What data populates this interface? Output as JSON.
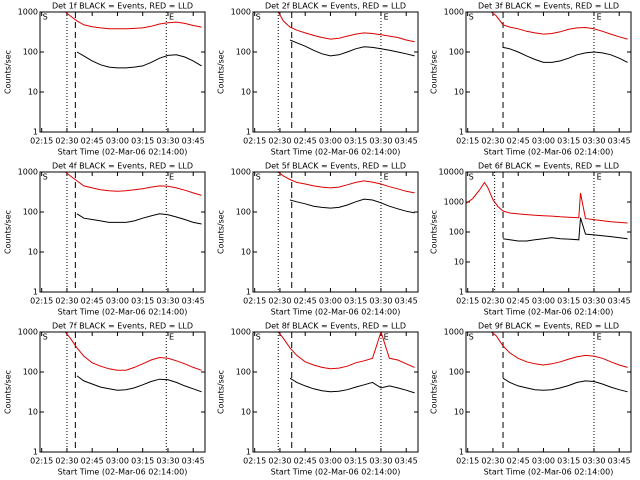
{
  "chart_data": [
    {
      "type": "line",
      "title": "Det 1f BLACK = Events, RED = LLD",
      "xlabel": "Start Time (02-Mar-06 02:14:00)",
      "ylabel": "Counts/sec",
      "log_y": true,
      "x": [
        "02:29",
        "02:32",
        "02:36",
        "02:40",
        "02:45",
        "02:50",
        "02:55",
        "03:00",
        "03:05",
        "03:10",
        "03:15",
        "03:20",
        "03:25",
        "03:30",
        "03:35",
        "03:40",
        "03:45",
        "03:50"
      ],
      "xlim": [
        "02:14",
        "03:52"
      ],
      "xticks": [
        "02:15",
        "02:30",
        "02:45",
        "03:00",
        "03:15",
        "03:30",
        "03:45"
      ],
      "ylim": [
        1,
        1000
      ],
      "yticks": [
        1,
        10,
        100,
        1000
      ],
      "vlines": [
        {
          "x": "02:30",
          "style": "dotted"
        },
        {
          "x": "02:35",
          "style": "dashed"
        },
        {
          "x": "03:29",
          "style": "dotted"
        }
      ],
      "annotations": [
        {
          "text": "S",
          "x": "02:15"
        },
        {
          "text": "E",
          "x": "03:30"
        }
      ],
      "series": [
        {
          "color": "#000000",
          "values": [
            null,
            null,
            100,
            80,
            60,
            48,
            42,
            40,
            40,
            42,
            45,
            55,
            70,
            82,
            85,
            75,
            60,
            45
          ]
        },
        {
          "color": "#dd0000",
          "values": [
            1000,
            800,
            600,
            480,
            430,
            400,
            380,
            380,
            380,
            390,
            400,
            440,
            500,
            540,
            560,
            520,
            460,
            420
          ]
        }
      ]
    },
    {
      "type": "line",
      "title": "Det 2f BLACK = Events, RED = LLD",
      "xlabel": "Start Time (02-Mar-06 02:14:00)",
      "ylabel": "Counts/sec",
      "log_y": true,
      "x": [
        "02:29",
        "02:32",
        "02:36",
        "02:40",
        "02:45",
        "02:50",
        "02:55",
        "03:00",
        "03:05",
        "03:10",
        "03:15",
        "03:20",
        "03:25",
        "03:30",
        "03:35",
        "03:40",
        "03:45",
        "03:50"
      ],
      "xlim": [
        "02:14",
        "03:52"
      ],
      "xticks": [
        "02:15",
        "02:30",
        "02:45",
        "03:00",
        "03:15",
        "03:30",
        "03:45"
      ],
      "ylim": [
        1,
        1000
      ],
      "yticks": [
        1,
        10,
        100,
        1000
      ],
      "vlines": [
        {
          "x": "02:29",
          "style": "dotted"
        },
        {
          "x": "02:37",
          "style": "dashed"
        },
        {
          "x": "03:30",
          "style": "dotted"
        }
      ],
      "annotations": [
        {
          "text": "S",
          "x": "02:15"
        },
        {
          "text": "E",
          "x": "03:31"
        }
      ],
      "series": [
        {
          "color": "#000000",
          "values": [
            null,
            null,
            200,
            170,
            140,
            110,
            90,
            80,
            85,
            100,
            120,
            135,
            130,
            120,
            110,
            100,
            90,
            80
          ]
        },
        {
          "color": "#dd0000",
          "values": [
            1000,
            600,
            420,
            350,
            300,
            260,
            230,
            210,
            220,
            250,
            280,
            300,
            290,
            270,
            250,
            230,
            200,
            180
          ]
        }
      ]
    },
    {
      "type": "line",
      "title": "Det 3f BLACK = Events, RED = LLD",
      "xlabel": "Start Time (02-Mar-06 02:14:00)",
      "ylabel": "Counts/sec",
      "log_y": true,
      "x": [
        "02:29",
        "02:32",
        "02:36",
        "02:40",
        "02:45",
        "02:50",
        "02:55",
        "03:00",
        "03:05",
        "03:10",
        "03:15",
        "03:20",
        "03:25",
        "03:30",
        "03:35",
        "03:40",
        "03:45",
        "03:50"
      ],
      "xlim": [
        "02:14",
        "03:52"
      ],
      "xticks": [
        "02:15",
        "02:30",
        "02:45",
        "03:00",
        "03:15",
        "03:30",
        "03:45"
      ],
      "ylim": [
        1,
        1000
      ],
      "yticks": [
        1,
        10,
        100,
        1000
      ],
      "vlines": [
        {
          "x": "02:36",
          "style": "dashed"
        },
        {
          "x": "03:30",
          "style": "dotted"
        }
      ],
      "annotations": [
        {
          "text": "S",
          "x": "02:15"
        },
        {
          "text": "E",
          "x": "03:31"
        }
      ],
      "series": [
        {
          "color": "#000000",
          "values": [
            null,
            null,
            130,
            120,
            100,
            80,
            65,
            55,
            55,
            60,
            70,
            85,
            95,
            100,
            95,
            85,
            70,
            55
          ]
        },
        {
          "color": "#dd0000",
          "values": [
            1000,
            800,
            480,
            420,
            380,
            330,
            300,
            280,
            290,
            320,
            370,
            400,
            410,
            380,
            330,
            280,
            240,
            210
          ]
        }
      ]
    },
    {
      "type": "line",
      "title": "Det 4f BLACK = Events, RED = LLD",
      "xlabel": "Start Time (02-Mar-06 02:14:00)",
      "ylabel": "Counts/sec",
      "log_y": true,
      "x": [
        "02:29",
        "02:32",
        "02:36",
        "02:40",
        "02:45",
        "02:50",
        "02:55",
        "03:00",
        "03:05",
        "03:10",
        "03:15",
        "03:20",
        "03:25",
        "03:30",
        "03:35",
        "03:40",
        "03:45",
        "03:50"
      ],
      "xlim": [
        "02:14",
        "03:52"
      ],
      "xticks": [
        "02:15",
        "02:30",
        "02:45",
        "03:00",
        "03:15",
        "03:30",
        "03:45"
      ],
      "ylim": [
        1,
        1000
      ],
      "yticks": [
        1,
        10,
        100,
        1000
      ],
      "vlines": [
        {
          "x": "02:30",
          "style": "dotted"
        },
        {
          "x": "02:35",
          "style": "dashed"
        },
        {
          "x": "03:29",
          "style": "dotted"
        }
      ],
      "annotations": [
        {
          "text": "S",
          "x": "02:15"
        },
        {
          "text": "E",
          "x": "03:30"
        }
      ],
      "series": [
        {
          "color": "#000000",
          "values": [
            null,
            null,
            90,
            70,
            65,
            60,
            55,
            55,
            55,
            60,
            70,
            80,
            90,
            85,
            75,
            65,
            55,
            50
          ]
        },
        {
          "color": "#dd0000",
          "values": [
            1000,
            800,
            600,
            450,
            400,
            360,
            340,
            330,
            340,
            360,
            380,
            420,
            450,
            440,
            400,
            350,
            300,
            260
          ]
        }
      ]
    },
    {
      "type": "line",
      "title": "Det 5f BLACK = Events, RED = LLD",
      "xlabel": "Start Time (02-Mar-06 02:14:00)",
      "ylabel": "Counts/sec",
      "log_y": true,
      "x": [
        "02:29",
        "02:32",
        "02:36",
        "02:40",
        "02:45",
        "02:50",
        "02:55",
        "03:00",
        "03:05",
        "03:10",
        "03:15",
        "03:20",
        "03:25",
        "03:30",
        "03:35",
        "03:40",
        "03:45",
        "03:50"
      ],
      "xlim": [
        "02:14",
        "03:52"
      ],
      "xticks": [
        "02:15",
        "02:30",
        "02:45",
        "03:00",
        "03:15",
        "03:30",
        "03:45"
      ],
      "ylim": [
        1,
        1000
      ],
      "yticks": [
        1,
        10,
        100,
        1000
      ],
      "vlines": [
        {
          "x": "02:29",
          "style": "dotted"
        },
        {
          "x": "02:37",
          "style": "dashed"
        },
        {
          "x": "03:30",
          "style": "dotted"
        }
      ],
      "annotations": [
        {
          "text": "S",
          "x": "02:15"
        },
        {
          "text": "E",
          "x": "03:31"
        }
      ],
      "series": [
        {
          "color": "#000000",
          "values": [
            null,
            null,
            200,
            180,
            160,
            140,
            130,
            125,
            130,
            150,
            180,
            210,
            200,
            170,
            140,
            120,
            105,
            95
          ]
        },
        {
          "color": "#dd0000",
          "values": [
            1000,
            800,
            650,
            550,
            500,
            450,
            420,
            400,
            420,
            480,
            550,
            600,
            560,
            500,
            430,
            380,
            330,
            300
          ]
        }
      ]
    },
    {
      "type": "line",
      "title": "Det 6f BLACK = Events, RED = LLD",
      "xlabel": "Start Time (02-Mar-06 02:14:00)",
      "ylabel": "Counts/sec",
      "log_y": true,
      "x": [
        "02:14",
        "02:18",
        "02:22",
        "02:25",
        "02:27",
        "02:30",
        "02:33",
        "02:36",
        "02:40",
        "02:45",
        "02:50",
        "02:55",
        "03:00",
        "03:05",
        "03:10",
        "03:15",
        "03:21",
        "03:22",
        "03:25",
        "03:30",
        "03:40",
        "03:50"
      ],
      "xlim": [
        "02:14",
        "03:52"
      ],
      "xticks": [
        "02:15",
        "02:30",
        "02:45",
        "03:00",
        "03:15",
        "03:30",
        "03:45"
      ],
      "ylim": [
        1,
        10000
      ],
      "yticks": [
        1,
        10,
        100,
        1000,
        10000
      ],
      "vlines": [
        {
          "x": "02:31",
          "style": "dotted"
        },
        {
          "x": "02:36",
          "style": "dashed"
        },
        {
          "x": "03:30",
          "style": "dotted"
        }
      ],
      "annotations": [
        {
          "text": "S",
          "x": "02:15"
        },
        {
          "text": "E",
          "x": "03:31"
        }
      ],
      "series": [
        {
          "color": "#000000",
          "values": [
            null,
            null,
            null,
            null,
            null,
            null,
            null,
            60,
            55,
            50,
            50,
            55,
            60,
            65,
            60,
            58,
            55,
            300,
            85,
            80,
            70,
            60
          ]
        },
        {
          "color": "#dd0000",
          "values": [
            900,
            1300,
            2500,
            4500,
            3000,
            1200,
            700,
            500,
            430,
            400,
            380,
            360,
            350,
            340,
            320,
            310,
            300,
            2000,
            280,
            260,
            220,
            200
          ]
        }
      ]
    },
    {
      "type": "line",
      "title": "Det 7f BLACK = Events, RED = LLD",
      "xlabel": "Start Time (02-Mar-06 02:14:00)",
      "ylabel": "Counts/sec",
      "log_y": true,
      "x": [
        "02:29",
        "02:32",
        "02:36",
        "02:40",
        "02:45",
        "02:50",
        "02:55",
        "03:00",
        "03:05",
        "03:10",
        "03:15",
        "03:20",
        "03:25",
        "03:30",
        "03:35",
        "03:40",
        "03:45",
        "03:50"
      ],
      "xlim": [
        "02:14",
        "03:52"
      ],
      "xticks": [
        "02:15",
        "02:30",
        "02:45",
        "03:00",
        "03:15",
        "03:30",
        "03:45"
      ],
      "ylim": [
        1,
        1000
      ],
      "yticks": [
        1,
        10,
        100,
        1000
      ],
      "vlines": [
        {
          "x": "02:30",
          "style": "dotted"
        },
        {
          "x": "02:35",
          "style": "dashed"
        },
        {
          "x": "03:29",
          "style": "dotted"
        }
      ],
      "annotations": [
        {
          "text": "S",
          "x": "02:15"
        },
        {
          "text": "E",
          "x": "03:30"
        }
      ],
      "series": [
        {
          "color": "#000000",
          "values": [
            null,
            null,
            80,
            60,
            50,
            42,
            38,
            35,
            36,
            40,
            48,
            58,
            66,
            64,
            55,
            45,
            38,
            32
          ]
        },
        {
          "color": "#dd0000",
          "values": [
            1000,
            700,
            400,
            250,
            170,
            140,
            120,
            110,
            110,
            130,
            160,
            200,
            230,
            220,
            190,
            160,
            130,
            110
          ]
        }
      ]
    },
    {
      "type": "line",
      "title": "Det 8f BLACK = Events, RED = LLD",
      "xlabel": "Start Time (02-Mar-06 02:14:00)",
      "ylabel": "Counts/sec",
      "log_y": true,
      "x": [
        "02:29",
        "02:32",
        "02:36",
        "02:40",
        "02:45",
        "02:50",
        "02:55",
        "03:00",
        "03:05",
        "03:10",
        "03:15",
        "03:20",
        "03:25",
        "03:30",
        "03:35",
        "03:40",
        "03:45",
        "03:50"
      ],
      "xlim": [
        "02:14",
        "03:52"
      ],
      "xticks": [
        "02:15",
        "02:30",
        "02:45",
        "03:00",
        "03:15",
        "03:30",
        "03:45"
      ],
      "ylim": [
        1,
        1000
      ],
      "yticks": [
        1,
        10,
        100,
        1000
      ],
      "vlines": [
        {
          "x": "02:29",
          "style": "dotted"
        },
        {
          "x": "02:37",
          "style": "dashed"
        },
        {
          "x": "03:30",
          "style": "dotted"
        }
      ],
      "annotations": [
        {
          "text": "S",
          "x": "02:15"
        },
        {
          "text": "E",
          "x": "03:31"
        }
      ],
      "series": [
        {
          "color": "#000000",
          "values": [
            null,
            null,
            70,
            55,
            45,
            38,
            34,
            32,
            33,
            36,
            42,
            48,
            55,
            40,
            45,
            40,
            35,
            30
          ]
        },
        {
          "color": "#dd0000",
          "values": [
            1000,
            700,
            400,
            260,
            180,
            150,
            130,
            120,
            125,
            140,
            170,
            190,
            220,
            1000,
            220,
            200,
            160,
            130
          ]
        }
      ]
    },
    {
      "type": "line",
      "title": "Det 9f BLACK = Events, RED = LLD",
      "xlabel": "Start Time (02-Mar-06 02:14:00)",
      "ylabel": "Counts/sec",
      "log_y": true,
      "x": [
        "02:29",
        "02:32",
        "02:36",
        "02:40",
        "02:45",
        "02:50",
        "02:55",
        "03:00",
        "03:05",
        "03:10",
        "03:15",
        "03:20",
        "03:25",
        "03:30",
        "03:35",
        "03:40",
        "03:45",
        "03:50"
      ],
      "xlim": [
        "02:14",
        "03:52"
      ],
      "xticks": [
        "02:15",
        "02:30",
        "02:45",
        "03:00",
        "03:15",
        "03:30",
        "03:45"
      ],
      "ylim": [
        1,
        1000
      ],
      "yticks": [
        1,
        10,
        100,
        1000
      ],
      "vlines": [
        {
          "x": "02:36",
          "style": "dashed"
        },
        {
          "x": "03:30",
          "style": "dotted"
        }
      ],
      "annotations": [
        {
          "text": "S",
          "x": "02:15"
        },
        {
          "text": "E",
          "x": "03:31"
        }
      ],
      "series": [
        {
          "color": "#000000",
          "values": [
            null,
            null,
            70,
            55,
            45,
            40,
            36,
            35,
            36,
            40,
            46,
            55,
            60,
            58,
            50,
            42,
            36,
            32
          ]
        },
        {
          "color": "#dd0000",
          "values": [
            1000,
            800,
            450,
            300,
            220,
            180,
            160,
            150,
            160,
            180,
            210,
            240,
            260,
            250,
            220,
            180,
            150,
            130
          ]
        }
      ]
    }
  ]
}
